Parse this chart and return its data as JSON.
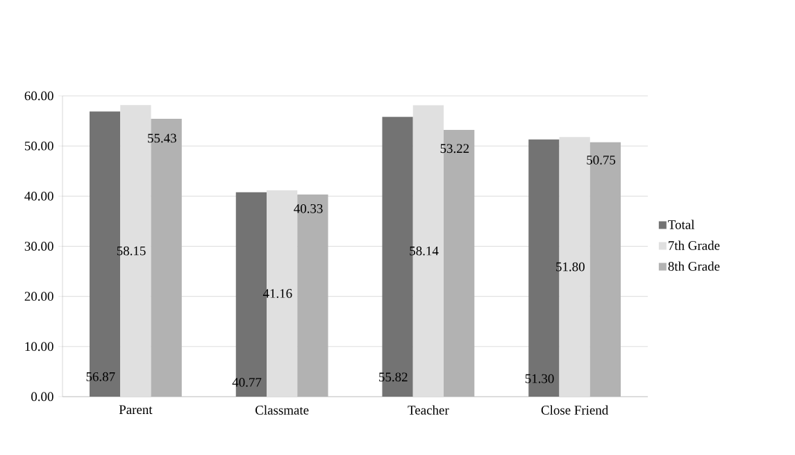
{
  "chart_data": {
    "type": "bar",
    "categories": [
      "Parent",
      "Classmate",
      "Teacher",
      "Close Friend"
    ],
    "series": [
      {
        "name": "Total",
        "color": "#737373",
        "values": [
          56.87,
          40.77,
          55.82,
          51.3
        ],
        "value_labels": [
          "56.87",
          "40.77",
          "55.82",
          "51.30"
        ]
      },
      {
        "name": "7th Grade",
        "color": "#e0e0e0",
        "values": [
          58.15,
          41.16,
          58.14,
          51.8
        ],
        "value_labels": [
          "58.15",
          "41.16",
          "58.14",
          "51.80"
        ]
      },
      {
        "name": "8th Grade",
        "color": "#b2b2b2",
        "values": [
          55.43,
          40.33,
          53.22,
          50.75
        ],
        "value_labels": [
          "55.43",
          "40.33",
          "53.22",
          "50.75"
        ]
      }
    ],
    "ylim": [
      0,
      60
    ],
    "yticks": [
      {
        "value": 0,
        "label": "0.00"
      },
      {
        "value": 10,
        "label": "10.00"
      },
      {
        "value": 20,
        "label": "20.00"
      },
      {
        "value": 30,
        "label": "30.00"
      },
      {
        "value": 40,
        "label": "40.00"
      },
      {
        "value": 50,
        "label": "50.00"
      },
      {
        "value": 60,
        "label": "60.00"
      }
    ],
    "grid": "y",
    "legend": "right"
  }
}
